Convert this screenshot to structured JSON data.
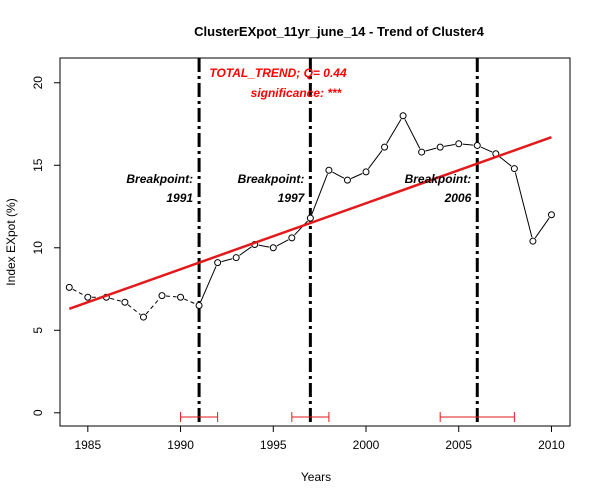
{
  "chart_data": {
    "type": "line",
    "title": "ClusterEXpot_11yr_june_14  -  Trend of Cluster4",
    "xlabel": "Years",
    "ylabel": "Index EXpot (%)",
    "xlim": [
      1983.5,
      2011.0
    ],
    "ylim": [
      -0.8,
      21.5
    ],
    "xticks": [
      1985,
      1990,
      1995,
      2000,
      2005,
      2010
    ],
    "yticks": [
      0,
      5,
      10,
      15,
      20
    ],
    "series": [
      {
        "x": [
          1984,
          1985,
          1986,
          1987,
          1988,
          1989,
          1990,
          1991,
          1992,
          1993,
          1994,
          1995,
          1996,
          1997,
          1998,
          1999,
          2000,
          2001,
          2002,
          2003,
          2004,
          2005,
          2006,
          2007,
          2008,
          2009,
          2010
        ],
        "values": [
          7.6,
          7.0,
          7.0,
          6.7,
          5.8,
          7.1,
          7.0,
          6.5,
          9.1,
          9.4,
          10.2,
          10.0,
          10.6,
          11.8,
          14.7,
          14.1,
          14.6,
          16.1,
          18.0,
          15.8,
          16.1,
          16.3,
          16.2,
          15.7,
          14.8,
          10.4,
          12.0
        ]
      }
    ],
    "trend_line": {
      "x": [
        1984,
        2010
      ],
      "y": [
        6.3,
        16.7
      ],
      "color": "#e31a1c"
    },
    "trend_annotation": {
      "line1": "TOTAL_TREND;  Q= 0.44",
      "line2": "significance: ***",
      "color": "#ff0000"
    },
    "breakpoints": [
      {
        "year": 1991,
        "label": "Breakpoint:",
        "year_label": "1991",
        "ci": [
          1990,
          1992
        ]
      },
      {
        "year": 1997,
        "label": "Breakpoint:",
        "year_label": "1997",
        "ci": [
          1996,
          1998
        ]
      },
      {
        "year": 2006,
        "label": "Breakpoint:",
        "year_label": "2006",
        "ci": [
          2004,
          2008
        ]
      }
    ],
    "ci_color": "#e31a1c",
    "grid": false
  }
}
